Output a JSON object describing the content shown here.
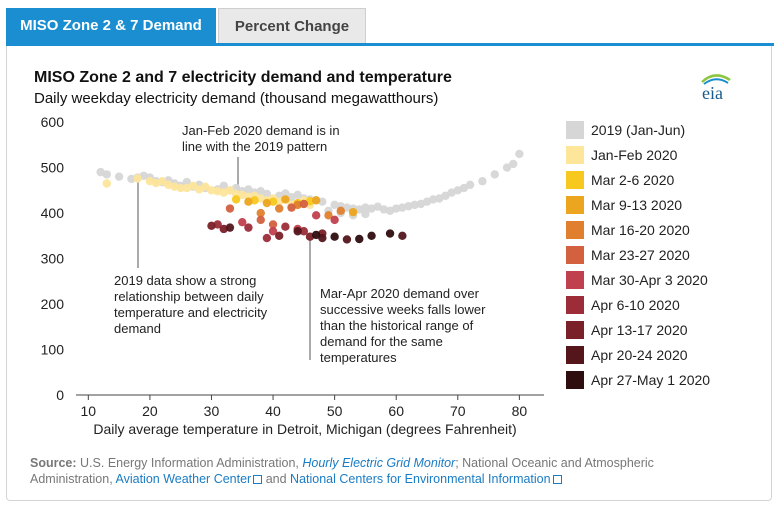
{
  "tabs": [
    {
      "label": "MISO Zone 2 & 7 Demand",
      "active": true
    },
    {
      "label": "Percent Change",
      "active": false
    }
  ],
  "header": {
    "title": "MISO Zone 2 and 7 electricity demand and temperature",
    "subtitle": "Daily weekday electricity demand (thousand megawatthours)",
    "logo_text": "eia"
  },
  "annotations": {
    "a1": [
      "Jan-Feb 2020 demand is in",
      "line with the 2019 pattern"
    ],
    "a2": [
      "2019 data show a strong",
      "relationship between daily",
      "temperature and electricity",
      "demand"
    ],
    "a3": [
      "Mar-Apr 2020 demand over",
      "successive weeks falls lower",
      "than the historical range of",
      "demand for the same",
      "temperatures"
    ]
  },
  "legend": [
    {
      "label": "2019 (Jan-Jun)",
      "color": "#d6d6d6"
    },
    {
      "label": "Jan-Feb 2020",
      "color": "#fde59a"
    },
    {
      "label": "Mar 2-6 2020",
      "color": "#f7c81e"
    },
    {
      "label": "Mar 9-13 2020",
      "color": "#eca51f"
    },
    {
      "label": "Mar 16-20 2020",
      "color": "#e07f2e"
    },
    {
      "label": "Mar 23-27 2020",
      "color": "#d3603f"
    },
    {
      "label": "Mar 30-Apr 3 2020",
      "color": "#c0404d"
    },
    {
      "label": "Apr 6-10 2020",
      "color": "#9c2c38"
    },
    {
      "label": "Apr 13-17 2020",
      "color": "#7a2028"
    },
    {
      "label": "Apr 20-24 2020",
      "color": "#54161b"
    },
    {
      "label": "Apr 27-May 1 2020",
      "color": "#2e0d0f"
    }
  ],
  "source": {
    "label": "Source:",
    "text1": "U.S. Energy Information Administration,",
    "link1": "Hourly Electric Grid Monitor",
    "text2": "; National Oceanic and Atmospheric Administration,",
    "link2": "Aviation Weather Center",
    "text3": "and",
    "link3": "National Centers for Environmental Information"
  },
  "chart_data": {
    "type": "scatter",
    "xlabel": "Daily average temperature in Detroit, Michigan (degrees Fahrenheit)",
    "ylabel": "",
    "xlim": [
      8,
      84
    ],
    "ylim": [
      0,
      620
    ],
    "xticks": [
      10,
      20,
      30,
      40,
      50,
      60,
      70,
      80
    ],
    "yticks": [
      0,
      100,
      200,
      300,
      400,
      500,
      600
    ],
    "grid": false,
    "legend_position": "right",
    "series": [
      {
        "name": "2019 (Jan-Jun)",
        "color": "#d6d6d6",
        "points": [
          [
            12,
            490
          ],
          [
            13,
            485
          ],
          [
            15,
            480
          ],
          [
            17,
            475
          ],
          [
            18,
            478
          ],
          [
            19,
            482
          ],
          [
            20,
            478
          ],
          [
            21,
            470
          ],
          [
            22,
            468
          ],
          [
            24,
            465
          ],
          [
            25,
            460
          ],
          [
            27,
            458
          ],
          [
            29,
            455
          ],
          [
            31,
            452
          ],
          [
            33,
            450
          ],
          [
            35,
            448
          ],
          [
            37,
            445
          ],
          [
            39,
            442
          ],
          [
            41,
            438
          ],
          [
            43,
            435
          ],
          [
            45,
            432
          ],
          [
            47,
            428
          ],
          [
            48,
            425
          ],
          [
            50,
            418
          ],
          [
            51,
            415
          ],
          [
            52,
            412
          ],
          [
            53,
            410
          ],
          [
            54,
            408
          ],
          [
            55,
            412
          ],
          [
            56,
            410
          ],
          [
            57,
            414
          ],
          [
            58,
            408
          ],
          [
            59,
            405
          ],
          [
            60,
            410
          ],
          [
            61,
            412
          ],
          [
            62,
            415
          ],
          [
            63,
            418
          ],
          [
            64,
            420
          ],
          [
            65,
            425
          ],
          [
            66,
            430
          ],
          [
            67,
            432
          ],
          [
            68,
            438
          ],
          [
            69,
            445
          ],
          [
            70,
            450
          ],
          [
            71,
            455
          ],
          [
            72,
            462
          ],
          [
            74,
            470
          ],
          [
            76,
            485
          ],
          [
            79,
            508
          ],
          [
            80,
            530
          ],
          [
            78,
            500
          ],
          [
            53,
            395
          ],
          [
            55,
            398
          ],
          [
            51,
            400
          ],
          [
            49,
            405
          ],
          [
            46,
            430
          ],
          [
            44,
            440
          ],
          [
            42,
            443
          ],
          [
            38,
            448
          ],
          [
            36,
            452
          ],
          [
            34,
            455
          ],
          [
            32,
            460
          ],
          [
            28,
            462
          ],
          [
            26,
            468
          ],
          [
            23,
            472
          ]
        ]
      },
      {
        "name": "Jan-Feb 2020",
        "color": "#fde59a",
        "points": [
          [
            13,
            465
          ],
          [
            18,
            476
          ],
          [
            20,
            470
          ],
          [
            21,
            466
          ],
          [
            22,
            470
          ],
          [
            23,
            462
          ],
          [
            24,
            458
          ],
          [
            25,
            455
          ],
          [
            26,
            455
          ],
          [
            27,
            460
          ],
          [
            28,
            452
          ],
          [
            29,
            458
          ],
          [
            30,
            450
          ],
          [
            31,
            448
          ],
          [
            32,
            445
          ],
          [
            33,
            450
          ],
          [
            34,
            442
          ],
          [
            35,
            440
          ],
          [
            36,
            436
          ],
          [
            37,
            438
          ],
          [
            38,
            432
          ],
          [
            39,
            428
          ],
          [
            40,
            432
          ],
          [
            41,
            425
          ],
          [
            42,
            430
          ],
          [
            43,
            418
          ],
          [
            44,
            422
          ],
          [
            45,
            428
          ],
          [
            46,
            418
          ]
        ]
      },
      {
        "name": "Mar 2-6 2020",
        "color": "#f7c81e",
        "points": [
          [
            34,
            430
          ],
          [
            37,
            428
          ],
          [
            40,
            425
          ],
          [
            44,
            422
          ],
          [
            46,
            426
          ]
        ]
      },
      {
        "name": "Mar 9-13 2020",
        "color": "#eca51f",
        "points": [
          [
            36,
            425
          ],
          [
            39,
            422
          ],
          [
            42,
            430
          ],
          [
            47,
            428
          ],
          [
            53,
            402
          ]
        ]
      },
      {
        "name": "Mar 16-20 2020",
        "color": "#e07f2e",
        "points": [
          [
            38,
            400
          ],
          [
            41,
            410
          ],
          [
            44,
            418
          ],
          [
            49,
            395
          ],
          [
            51,
            405
          ]
        ]
      },
      {
        "name": "Mar 23-27 2020",
        "color": "#d3603f",
        "points": [
          [
            33,
            410
          ],
          [
            38,
            385
          ],
          [
            40,
            375
          ],
          [
            43,
            412
          ],
          [
            45,
            420
          ]
        ]
      },
      {
        "name": "Mar 30-Apr 3 2020",
        "color": "#c0404d",
        "points": [
          [
            35,
            380
          ],
          [
            40,
            360
          ],
          [
            44,
            365
          ],
          [
            47,
            395
          ],
          [
            50,
            385
          ]
        ]
      },
      {
        "name": "Apr 6-10 2020",
        "color": "#9c2c38",
        "points": [
          [
            31,
            375
          ],
          [
            36,
            368
          ],
          [
            39,
            345
          ],
          [
            42,
            370
          ],
          [
            45,
            360
          ]
        ]
      },
      {
        "name": "Apr 13-17 2020",
        "color": "#7a2028",
        "points": [
          [
            30,
            372
          ],
          [
            32,
            365
          ],
          [
            41,
            350
          ],
          [
            46,
            348
          ],
          [
            48,
            355
          ]
        ]
      },
      {
        "name": "Apr 20-24 2020",
        "color": "#54161b",
        "points": [
          [
            33,
            368
          ],
          [
            44,
            360
          ],
          [
            48,
            345
          ],
          [
            52,
            342
          ],
          [
            61,
            350
          ]
        ]
      },
      {
        "name": "Apr 27-May 1 2020",
        "color": "#2e0d0f",
        "points": [
          [
            47,
            352
          ],
          [
            50,
            348
          ],
          [
            54,
            343
          ],
          [
            56,
            350
          ],
          [
            59,
            355
          ]
        ]
      }
    ]
  }
}
